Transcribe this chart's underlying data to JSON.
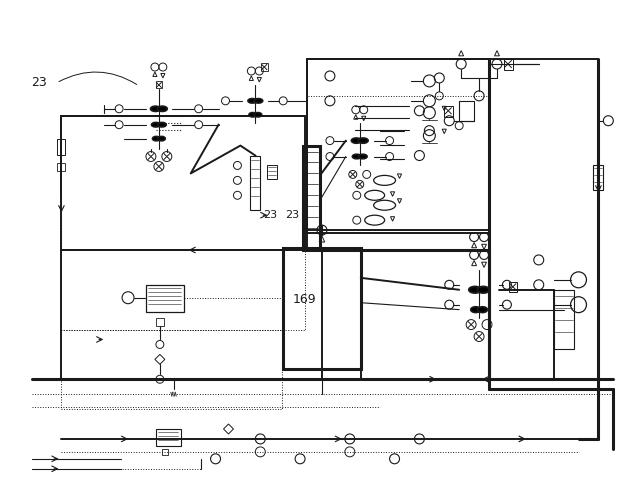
{
  "bg_color": "#ffffff",
  "line_color": "#1a1a1a",
  "thick_lw": 2.2,
  "med_lw": 1.4,
  "thin_lw": 0.8,
  "dotted_lw": 0.7
}
